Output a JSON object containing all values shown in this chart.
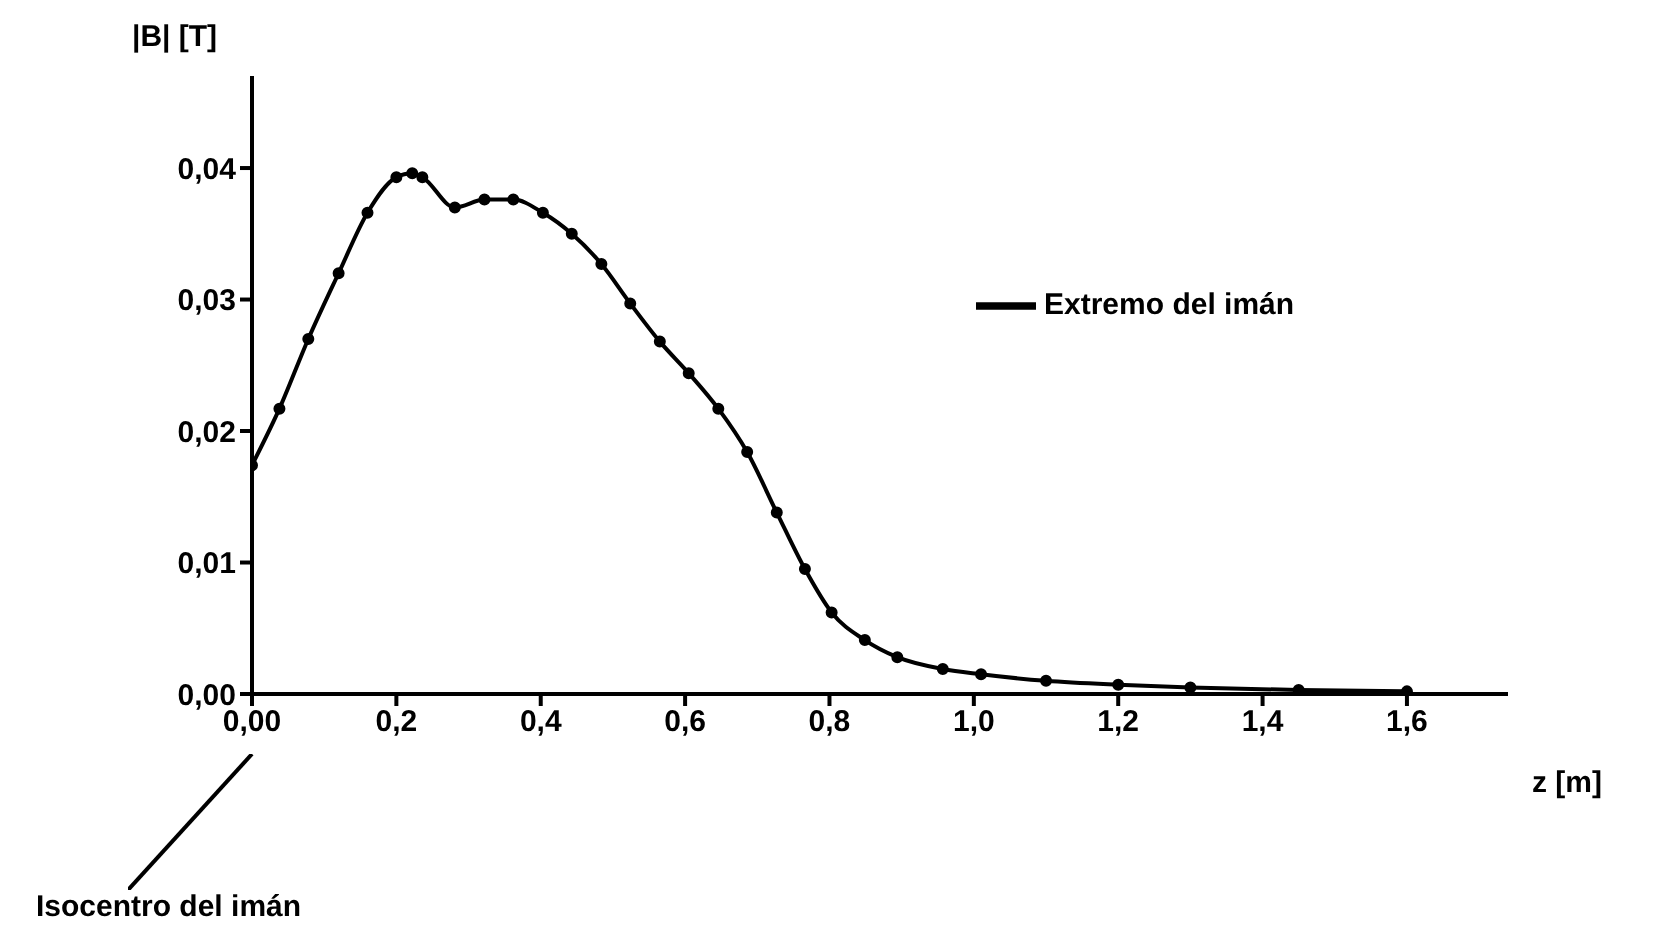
{
  "chart_data": {
    "type": "line",
    "xlabel": "z [m]",
    "ylabel": "|B| [T]",
    "x": [
      0,
      0.038,
      0.078,
      0.12,
      0.16,
      0.2,
      0.222,
      0.236,
      0.281,
      0.322,
      0.362,
      0.403,
      0.443,
      0.484,
      0.524,
      0.565,
      0.605,
      0.646,
      0.686,
      0.727,
      0.766,
      0.803,
      0.849,
      0.894,
      0.957,
      1.01,
      1.1,
      1.2,
      1.3,
      1.45,
      1.6
    ],
    "series": [
      {
        "name": "Extremo del imán",
        "color": "#000000",
        "values": [
          0.0174,
          0.0217,
          0.027,
          0.032,
          0.0366,
          0.0393,
          0.0396,
          0.0393,
          0.037,
          0.0376,
          0.0376,
          0.0366,
          0.035,
          0.0327,
          0.0297,
          0.0268,
          0.0244,
          0.0217,
          0.0184,
          0.0138,
          0.0095,
          0.0062,
          0.0041,
          0.0028,
          0.0019,
          0.0015,
          0.001,
          0.0007,
          0.0005,
          0.0003,
          0.0002
        ]
      }
    ],
    "xlim": [
      0,
      1.74
    ],
    "ylim": [
      0,
      0.047
    ],
    "xticks": [
      {
        "value": 0,
        "label": "0,00"
      },
      {
        "value": 0.2,
        "label": "0,2"
      },
      {
        "value": 0.4,
        "label": "0,4"
      },
      {
        "value": 0.6,
        "label": "0,6"
      },
      {
        "value": 0.8,
        "label": "0,8"
      },
      {
        "value": 1,
        "label": "1,0"
      },
      {
        "value": 1.2,
        "label": "1,2"
      },
      {
        "value": 1.4,
        "label": "1,4"
      },
      {
        "value": 1.6,
        "label": "1,6"
      }
    ],
    "yticks": [
      {
        "value": 0,
        "label": "0,00"
      },
      {
        "value": 0.01,
        "label": "0,01"
      },
      {
        "value": 0.02,
        "label": "0,02"
      },
      {
        "value": 0.03,
        "label": "0,03"
      },
      {
        "value": 0.04,
        "label": "0,04"
      }
    ],
    "annotations": [
      "Isocentro del imán"
    ],
    "legend": "top right",
    "grid": false,
    "marker": "circle",
    "line_style": "solid"
  }
}
